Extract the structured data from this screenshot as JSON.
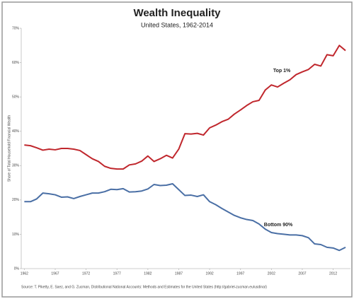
{
  "chart_data": {
    "type": "line",
    "title": "Wealth Inequality",
    "subtitle": "United States, 1962-2014",
    "y_label": "Share of Total Household Financial Wealth",
    "source": "Source: T. Piketty, E. Saez, and G. Zucman,  Distributional National Accounts: Methods and Estimates for the United States (http://gabriel-zucman.eu/usdina/)",
    "x": [
      1962,
      1963,
      1964,
      1965,
      1966,
      1967,
      1968,
      1969,
      1970,
      1971,
      1972,
      1973,
      1974,
      1975,
      1976,
      1977,
      1978,
      1979,
      1980,
      1981,
      1982,
      1983,
      1984,
      1985,
      1986,
      1987,
      1988,
      1989,
      1990,
      1991,
      1992,
      1993,
      1994,
      1995,
      1996,
      1997,
      1998,
      1999,
      2000,
      2001,
      2002,
      2003,
      2004,
      2005,
      2006,
      2007,
      2008,
      2009,
      2010,
      2011,
      2012,
      2013,
      2014
    ],
    "series": [
      {
        "name": "Top 1%",
        "color": "#c0272d",
        "values": [
          36,
          35.8,
          35.2,
          34.5,
          34.8,
          34.6,
          35,
          35,
          34.8,
          34.4,
          33.2,
          32,
          31.2,
          29.8,
          29.2,
          29,
          29,
          30.2,
          30.5,
          31.3,
          32.8,
          31.2,
          32,
          33,
          32.2,
          34.8,
          39.3,
          39.2,
          39.4,
          38.9,
          41,
          41.8,
          42.8,
          43.5,
          45,
          46.2,
          47.5,
          48.6,
          49,
          52,
          53.5,
          52.9,
          54,
          55,
          56.5,
          57.3,
          58,
          59.5,
          59,
          62.3,
          62,
          65,
          63.5
        ]
      },
      {
        "name": "Bottom 90%",
        "color": "#4a6fa5",
        "values": [
          19.5,
          19.5,
          20.3,
          22,
          21.8,
          21.5,
          20.8,
          20.9,
          20.4,
          21,
          21.5,
          22,
          22,
          22.4,
          23.1,
          23,
          23.3,
          22.3,
          22.4,
          22.6,
          23.2,
          24.5,
          24.2,
          24.3,
          24.7,
          23,
          21.3,
          21.4,
          21,
          21.5,
          19.5,
          18.6,
          17.5,
          16.5,
          15.5,
          14.8,
          14.3,
          14,
          13,
          11.5,
          10.5,
          10.2,
          10,
          9.8,
          9.8,
          9.6,
          9,
          7.2,
          7,
          6.2,
          6,
          5.3,
          6.2
        ]
      }
    ],
    "xlim": [
      1961.5,
      2014.8
    ],
    "xticks": [
      1962,
      1967,
      1972,
      1977,
      1982,
      1987,
      1992,
      1997,
      2002,
      2007,
      2012
    ],
    "ylim": [
      0,
      70
    ],
    "yticks": [
      {
        "value": 0,
        "label": "0%"
      },
      {
        "value": 10,
        "label": "10%"
      },
      {
        "value": 20,
        "label": "20%"
      },
      {
        "value": 30,
        "label": "30%"
      },
      {
        "value": 40,
        "label": "40%"
      },
      {
        "value": 50,
        "label": "50%"
      },
      {
        "value": 60,
        "label": "60%"
      },
      {
        "value": 70,
        "label": "70%"
      }
    ]
  }
}
